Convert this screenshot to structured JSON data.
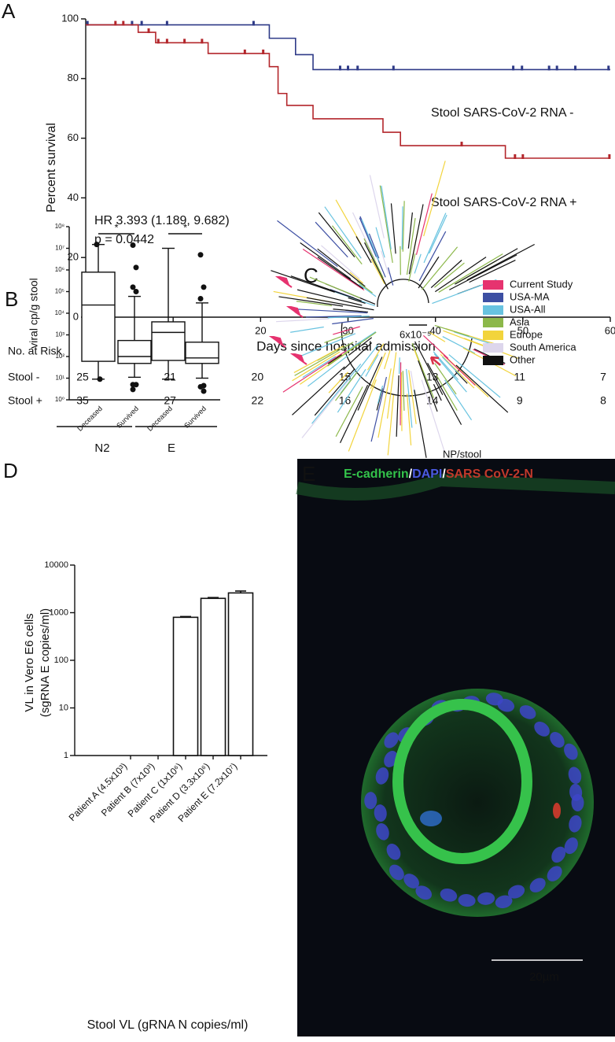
{
  "chart_data": [
    {
      "type": "step",
      "label": "A",
      "xlabel": "Days since hospital admission",
      "ylabel": "Percent survival",
      "xlim": [
        0,
        60
      ],
      "ylim": [
        0,
        100
      ],
      "xticks": [
        0,
        10,
        20,
        30,
        40,
        50,
        60
      ],
      "yticks": [
        0,
        20,
        40,
        60,
        80,
        100
      ],
      "series": [
        {
          "name": "Stool SARS-CoV-2  RNA -",
          "color": "#2e3a87",
          "x": [
            0,
            21,
            24,
            26
          ],
          "values": [
            98,
            93.5,
            88,
            83
          ],
          "censored": [
            0.2,
            5.3,
            6.4,
            9.3,
            19.2,
            29.1,
            30,
            31.1,
            35.2,
            48.9,
            49.9,
            53,
            53.9,
            56,
            59.8
          ]
        },
        {
          "name": "Stool SARS-CoV-2  RNA +",
          "color": "#b3262b",
          "x": [
            0,
            6,
            8,
            14,
            21,
            22,
            23,
            26,
            34,
            36,
            48
          ],
          "values": [
            98,
            95.5,
            92,
            88.4,
            84,
            75,
            71,
            66.5,
            62,
            57.5,
            53.3
          ],
          "censored": [
            3.4,
            4.3,
            7.2,
            8.3,
            9.3,
            11.3,
            13.3,
            18.2,
            20.3,
            43,
            49.1,
            50,
            59.9
          ]
        }
      ],
      "annotations": [
        "HR 3.393 (1.189, 9.682)",
        "p = 0.0442"
      ],
      "risk_table": {
        "title": "No. at Risk",
        "rows": [
          {
            "name": "Stool -",
            "values": [
              25,
              21,
              20,
              15,
              13,
              11,
              7
            ]
          },
          {
            "name": "Stool +",
            "values": [
              35,
              27,
              22,
              16,
              14,
              9,
              8
            ]
          }
        ]
      }
    },
    {
      "type": "box",
      "label": "B",
      "ylabel": "viral cp/g stool",
      "log": true,
      "ylim": [
        1,
        100000000
      ],
      "yticks": [
        {
          "value": 1,
          "label": "10⁰"
        },
        {
          "value": 10,
          "label": "10¹"
        },
        {
          "value": 100,
          "label": "10²"
        },
        {
          "value": 1000,
          "label": "10³"
        },
        {
          "value": 10000,
          "label": "10⁴"
        },
        {
          "value": 100000,
          "label": "10⁵"
        },
        {
          "value": 1000000,
          "label": "10⁶"
        },
        {
          "value": 10000000,
          "label": "10⁷"
        },
        {
          "value": 100000000,
          "label": "10⁸"
        }
      ],
      "categories": [
        "Deceased",
        "Survived",
        "Deceased",
        "Survived"
      ],
      "groups": [
        "N2",
        "E"
      ],
      "significance": [
        "*",
        "*"
      ],
      "boxes": [
        {
          "min": 9,
          "q1": 60,
          "median": 24000,
          "q3": 790000,
          "max": 15000000,
          "outliers": [
            15000000,
            9
          ]
        },
        {
          "min": 11,
          "q1": 48,
          "median": 100,
          "q3": 550,
          "max": 60000,
          "outliers": [
            14000000,
            1300000,
            160000,
            100000,
            5,
            5,
            3
          ]
        },
        {
          "min": 9,
          "q1": 66,
          "median": 1300,
          "q3": 4000,
          "max": 10000000,
          "outliers": []
        },
        {
          "min": 10,
          "q1": 48,
          "median": 86,
          "q3": 460,
          "max": 30000,
          "outliers": [
            5000000,
            160000,
            47000,
            4.5,
            4,
            2.5
          ]
        }
      ]
    },
    {
      "type": "bar",
      "label": "D",
      "log": true,
      "ylabel": [
        "VL in Vero E6 cells",
        "(sgRNA E copies/ml)"
      ],
      "xlabel": "Stool VL (gRNA N copies/ml)",
      "categories": [
        "Patient A (4.5x10³)",
        "Patient B (7x10³)",
        "Patient C (1x10⁶)",
        "Patient D (3.3x10⁶)",
        "Patient E (7.2x10⁷)"
      ],
      "values": [
        null,
        null,
        800,
        2000,
        2600
      ],
      "errors": [
        null,
        null,
        30,
        80,
        250
      ],
      "ylim": [
        1,
        10000
      ],
      "yticks": [
        1,
        10,
        100,
        1000,
        10000
      ],
      "color": "#ffffff"
    }
  ],
  "tree": {
    "label": "C",
    "scale_label": "6x10⁻⁵",
    "annotation": "NP/stool",
    "legend": [
      {
        "name": "Current Study",
        "color": "#e6336f"
      },
      {
        "name": "USA-MA",
        "color": "#3d4fa3"
      },
      {
        "name": "USA-All",
        "color": "#68c3e0"
      },
      {
        "name": "Asia",
        "color": "#8cb84a"
      },
      {
        "name": "Europe",
        "color": "#f2d43c"
      },
      {
        "name": "South America",
        "color": "#ddd6ec"
      },
      {
        "name": "Other",
        "color": "#111111"
      }
    ]
  },
  "image": {
    "label": "E",
    "scale_bar": "20µm",
    "caption": [
      {
        "text": "E-cadherin",
        "color": "#33c24a"
      },
      {
        "text": "/",
        "color": "#ffffff"
      },
      {
        "text": "DAPI",
        "color": "#4a5adf"
      },
      {
        "text": "/",
        "color": "#ffffff"
      },
      {
        "text": "SARS CoV-2-N",
        "color": "#c0392b"
      }
    ]
  }
}
